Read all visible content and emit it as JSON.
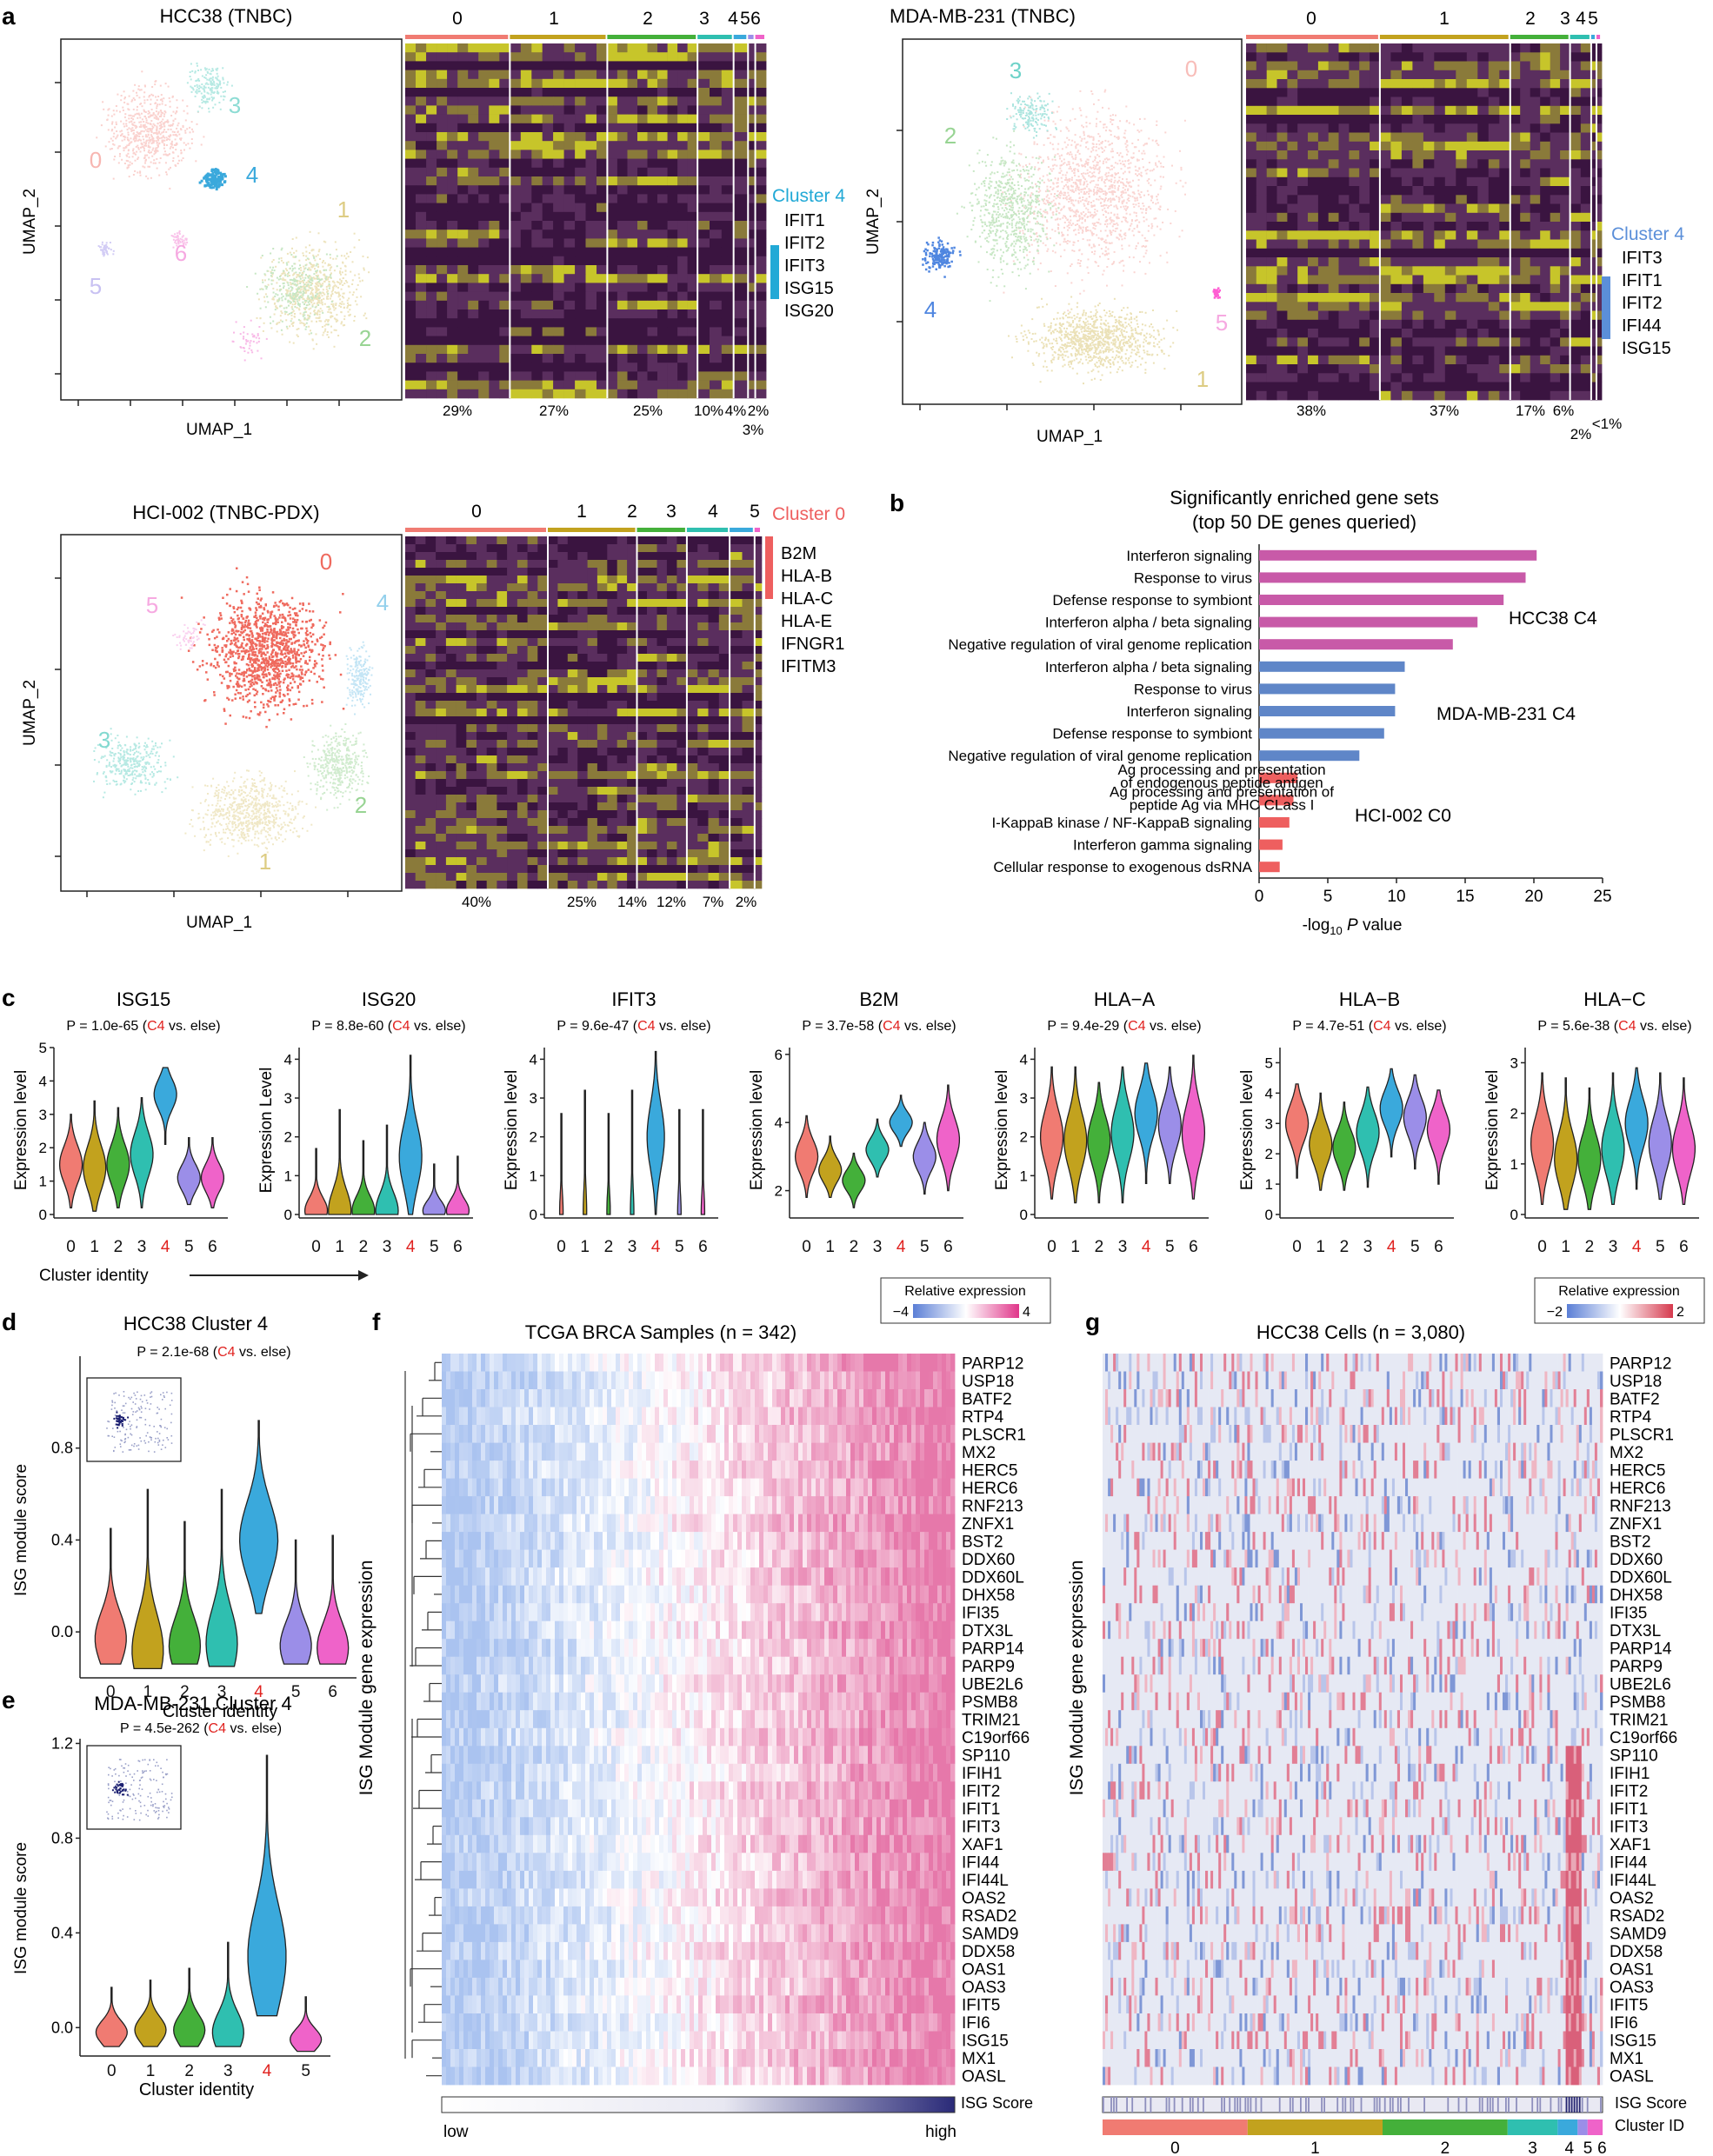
{
  "panel_letters": [
    "a",
    "b",
    "c",
    "d",
    "e",
    "f",
    "g"
  ],
  "panel_a": {
    "hcc38": {
      "title": "HCC38 (TNBC)",
      "umap_x": "UMAP_1",
      "umap_y": "UMAP_2",
      "umap_cluster_labels": [
        "0",
        "1",
        "2",
        "3",
        "4",
        "5",
        "6"
      ],
      "heat_cluster_labels": [
        "0",
        "1",
        "2",
        "3",
        "4",
        "5",
        "6"
      ],
      "percents": [
        "29%",
        "27%",
        "25%",
        "10%",
        "4%",
        "2%",
        "3%"
      ],
      "highlight": "Cluster 4",
      "genes": [
        "IFIT1",
        "IFIT2",
        "IFIT3",
        "ISG15",
        "ISG20"
      ]
    },
    "mda": {
      "title": "MDA-MB-231 (TNBC)",
      "umap_x": "UMAP_1",
      "umap_y": "UMAP_2",
      "umap_cluster_labels": [
        "0",
        "1",
        "2",
        "3",
        "4",
        "5"
      ],
      "heat_cluster_labels": [
        "0",
        "1",
        "2",
        "3",
        "4",
        "5"
      ],
      "percents": [
        "38%",
        "37%",
        "17%",
        "6%",
        "2%",
        "<1%"
      ],
      "highlight": "Cluster 4",
      "genes": [
        "IFIT3",
        "IFIT1",
        "IFIT2",
        "IFI44",
        "ISG15"
      ]
    },
    "hci": {
      "title": "HCI-002 (TNBC-PDX)",
      "umap_x": "UMAP_1",
      "umap_y": "UMAP_2",
      "umap_cluster_labels": [
        "0",
        "1",
        "2",
        "3",
        "4",
        "5"
      ],
      "heat_cluster_labels": [
        "0",
        "1",
        "2",
        "3",
        "4",
        "5"
      ],
      "percents": [
        "40%",
        "25%",
        "14%",
        "12%",
        "7%",
        "2%"
      ],
      "highlight": "Cluster 0",
      "genes": [
        "B2M",
        "HLA-B",
        "HLA-C",
        "HLA-E",
        "IFNGR1",
        "IFITM3"
      ]
    },
    "cluster_colors": [
      "#f07b72",
      "#c2a21e",
      "#44b03a",
      "#2fbfb0",
      "#3aa9dc",
      "#9b8ee8",
      "#ef63c9"
    ]
  },
  "chart_data": [
    {
      "type": "bar",
      "panel": "b",
      "title": "Significantly enriched gene sets",
      "subtitle": "(top 50 DE genes queried)",
      "xlabel": "-log10 P value",
      "xlim": [
        0,
        25
      ],
      "xticks": [
        0,
        5,
        10,
        15,
        20,
        25
      ],
      "categories": [
        "Interferon signaling",
        "Response to virus",
        "Defense response to symbiont",
        "Interferon alpha / beta signaling",
        "Negative regulation of viral genome replication",
        "Interferon alpha / beta signaling",
        "Response to virus",
        "Interferon signaling",
        "Defense response to symbiont",
        "Negative regulation of viral genome replication",
        "Ag processing and presentation of endogenous peptide antigen",
        "Ag processing and presentation of peptide Ag via MHC CLass I",
        "I-KappaB kinase / NF-KappaB signaling",
        "Interferon gamma signaling",
        "Cellular response to exogenous dsRNA"
      ],
      "values": [
        20.2,
        19.4,
        17.8,
        15.9,
        14.1,
        10.6,
        9.9,
        9.9,
        9.1,
        7.3,
        2.8,
        2.5,
        2.2,
        1.7,
        1.5
      ],
      "groups": [
        {
          "name": "HCC38 C4",
          "color": "#c85aa8",
          "indices": [
            0,
            1,
            2,
            3,
            4
          ]
        },
        {
          "name": "MDA-MB-231 C4",
          "color": "#5f86c8",
          "indices": [
            5,
            6,
            7,
            8,
            9
          ]
        },
        {
          "name": "HCI-002 C0",
          "color": "#ee5f5f",
          "indices": [
            10,
            11,
            12,
            13,
            14
          ]
        }
      ]
    },
    {
      "type": "violin",
      "panel": "c",
      "x_title": "Cluster identity",
      "categories": [
        "0",
        "1",
        "2",
        "3",
        "4",
        "5",
        "6"
      ],
      "highlight_category": "4",
      "panels": [
        {
          "gene": "ISG15",
          "pvalue": "P = 1.0e-65",
          "ylabel": "Expression level",
          "ylim": [
            0,
            5
          ],
          "yticks": [
            0,
            1,
            2,
            3,
            4,
            5
          ],
          "medians": [
            1.5,
            1.4,
            1.5,
            1.8,
            3.6,
            1.1,
            1.1
          ],
          "maxes": [
            3.0,
            3.4,
            3.2,
            3.5,
            4.4,
            2.3,
            2.3
          ],
          "mins": [
            0.2,
            0.1,
            0.2,
            0.2,
            2.1,
            0.3,
            0.2
          ]
        },
        {
          "gene": "ISG20",
          "pvalue": "P = 8.8e-60",
          "ylabel": "Expression Level",
          "ylim": [
            0,
            4.3
          ],
          "yticks": [
            0,
            1,
            2,
            3,
            4
          ],
          "medians": [
            0.1,
            0.1,
            0.1,
            0.1,
            1.5,
            0.1,
            0.1
          ],
          "maxes": [
            1.7,
            2.7,
            1.9,
            2.3,
            4.1,
            1.3,
            1.5
          ],
          "mins": [
            0,
            0,
            0,
            0,
            0,
            0,
            0
          ]
        },
        {
          "gene": "IFIT3",
          "pvalue": "P = 9.6e-47",
          "ylabel": "Expression level",
          "ylim": [
            0,
            4.3
          ],
          "yticks": [
            0,
            1,
            2,
            3,
            4
          ],
          "medians": [
            0.05,
            0.05,
            0.05,
            0.05,
            2.0,
            0.05,
            0.05
          ],
          "maxes": [
            2.6,
            3.2,
            2.6,
            3.2,
            4.2,
            2.7,
            2.7
          ],
          "mins": [
            0,
            0,
            0,
            0,
            0,
            0,
            0
          ]
        },
        {
          "gene": "B2M",
          "pvalue": "P = 3.7e-58",
          "ylabel": "Expression level",
          "ylim": [
            1.3,
            6.2
          ],
          "yticks": [
            2,
            4,
            6
          ],
          "medians": [
            3.0,
            2.6,
            2.3,
            3.2,
            4.0,
            3.0,
            3.5
          ],
          "maxes": [
            4.2,
            3.6,
            3.1,
            4.1,
            4.8,
            4.0,
            5.1
          ],
          "mins": [
            1.8,
            1.8,
            1.5,
            2.4,
            3.3,
            1.9,
            2.0
          ]
        },
        {
          "gene": "HLA−A",
          "pvalue": "P = 9.4e-29",
          "ylabel": "Expression level",
          "ylim": [
            0,
            4.3
          ],
          "yticks": [
            0,
            1,
            2,
            3,
            4
          ],
          "medians": [
            2.0,
            1.9,
            1.9,
            2.1,
            2.6,
            2.3,
            2.1
          ],
          "maxes": [
            3.8,
            3.8,
            3.4,
            3.8,
            3.9,
            3.8,
            4.1
          ],
          "mins": [
            0.4,
            0.3,
            0.3,
            0.3,
            0.8,
            0.8,
            0.4
          ]
        },
        {
          "gene": "HLA−B",
          "pvalue": "P = 4.7e-51",
          "ylabel": "Expression level",
          "ylim": [
            0,
            5.5
          ],
          "yticks": [
            0,
            1,
            2,
            3,
            4,
            5
          ],
          "medians": [
            3.0,
            2.3,
            2.2,
            2.7,
            3.5,
            3.2,
            2.8
          ],
          "maxes": [
            4.3,
            4.0,
            3.7,
            4.2,
            4.8,
            4.6,
            4.1
          ],
          "mins": [
            1.2,
            0.8,
            0.8,
            0.9,
            1.9,
            1.5,
            1.0
          ]
        },
        {
          "gene": "HLA−C",
          "pvalue": "P = 5.6e-38",
          "ylabel": "Expression level",
          "ylim": [
            0,
            3.3
          ],
          "yticks": [
            0,
            1,
            2,
            3
          ],
          "medians": [
            1.4,
            1.1,
            1.1,
            1.3,
            1.8,
            1.4,
            1.3
          ],
          "maxes": [
            2.8,
            2.7,
            2.5,
            2.8,
            2.9,
            2.8,
            2.7
          ],
          "mins": [
            0.2,
            0.1,
            0.1,
            0.2,
            0.5,
            0.3,
            0.2
          ]
        }
      ]
    },
    {
      "type": "violin",
      "panel": "d",
      "title": "HCC38 Cluster 4",
      "pvalue": "P = 2.1e-68",
      "ylabel": "ISG module score",
      "xlabel": "Cluster identity",
      "categories": [
        "0",
        "1",
        "2",
        "3",
        "4",
        "5",
        "6"
      ],
      "ylim": [
        -0.2,
        1.2
      ],
      "yticks": [
        0.0,
        0.4,
        0.8
      ],
      "medians": [
        -0.03,
        -0.08,
        -0.06,
        -0.05,
        0.4,
        -0.06,
        -0.07
      ],
      "maxes": [
        0.45,
        0.62,
        0.48,
        0.62,
        0.92,
        0.4,
        0.42
      ],
      "mins": [
        -0.14,
        -0.16,
        -0.14,
        -0.15,
        0.08,
        -0.14,
        -0.14
      ]
    },
    {
      "type": "violin",
      "panel": "e",
      "title": "MDA-MB-231 Cluster 4",
      "pvalue": "P = 4.5e-262",
      "ylabel": "ISG module score",
      "xlabel": "Cluster identity",
      "categories": [
        "0",
        "1",
        "2",
        "3",
        "4",
        "5"
      ],
      "ylim": [
        -0.12,
        1.22
      ],
      "yticks": [
        0.0,
        0.4,
        0.8,
        1.2
      ],
      "medians": [
        -0.02,
        -0.01,
        -0.01,
        -0.02,
        0.3,
        -0.05
      ],
      "maxes": [
        0.17,
        0.2,
        0.25,
        0.36,
        1.15,
        0.13
      ],
      "mins": [
        -0.08,
        -0.08,
        -0.08,
        -0.08,
        0.05,
        -0.1
      ]
    }
  ],
  "panel_c": {
    "vs_prefix": " (",
    "vs_c4": "C4",
    "vs_suffix": " vs. else)",
    "x_title": "Cluster identity"
  },
  "legend_c1": {
    "title": "Relative expression",
    "min": "−4",
    "max": "4"
  },
  "legend_c2": {
    "title": "Relative expression",
    "min": "−2",
    "max": "2"
  },
  "panel_f": {
    "title": "TCGA BRCA Samples (n = 342)",
    "ylabel": "ISG Module gene expression",
    "score_label": "ISG Score",
    "low": "low",
    "high": "high"
  },
  "panel_g": {
    "title": "HCC38 Cells (n = 3,080)",
    "ylabel": "ISG Module gene expression",
    "score_label": "ISG Score",
    "cluster_label": "Cluster ID",
    "cluster_labels": [
      "0",
      "1",
      "2",
      "3",
      "4",
      "5",
      "6"
    ]
  },
  "isg_genes": [
    "PARP12",
    "USP18",
    "BATF2",
    "RTP4",
    "PLSCR1",
    "MX2",
    "HERC5",
    "HERC6",
    "RNF213",
    "ZNFX1",
    "BST2",
    "DDX60",
    "DDX60L",
    "DHX58",
    "IFI35",
    "DTX3L",
    "PARP14",
    "PARP9",
    "UBE2L6",
    "PSMB8",
    "TRIM21",
    "C19orf66",
    "SP110",
    "IFIH1",
    "IFIT2",
    "IFIT1",
    "IFIT3",
    "XAF1",
    "IFI44",
    "IFI44L",
    "OAS2",
    "RSAD2",
    "SAMD9",
    "DDX58",
    "OAS1",
    "OAS3",
    "IFIT5",
    "IFI6",
    "ISG15",
    "MX1",
    "OASL"
  ]
}
